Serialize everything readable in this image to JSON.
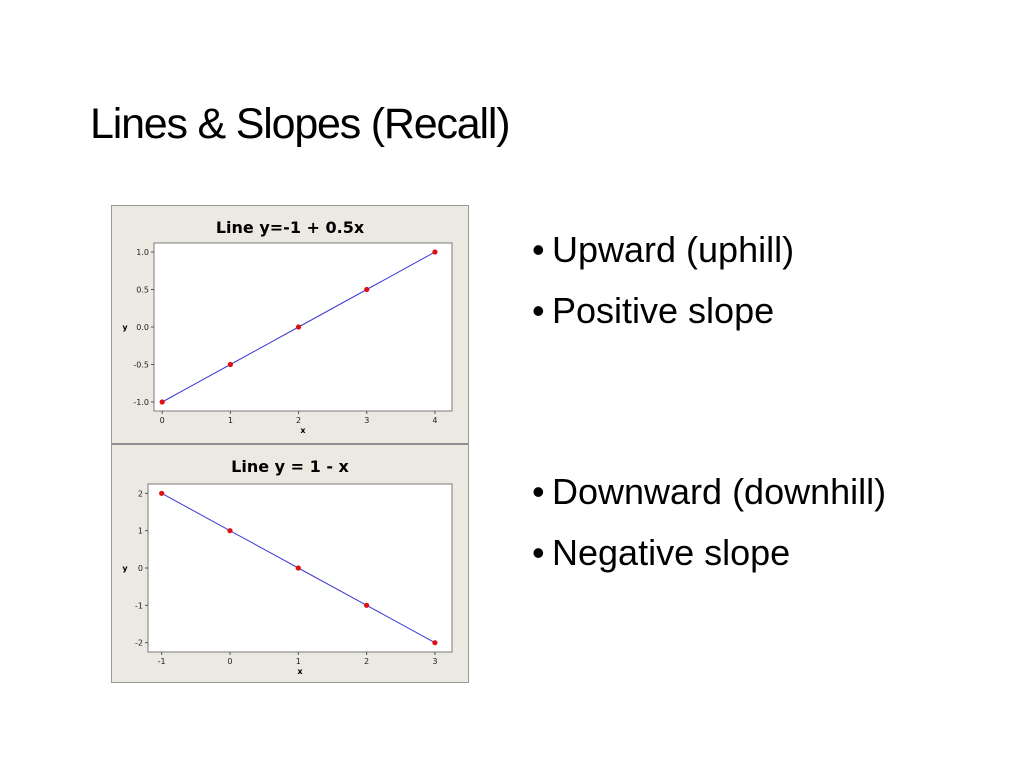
{
  "slide": {
    "title": "Lines & Slopes (Recall)"
  },
  "bullets": {
    "upward": "Upward (uphill)",
    "positive": "Positive slope",
    "downward": "Downward (downhill)",
    "negative": "Negative slope",
    "marker": "•"
  },
  "colors": {
    "line": "#3b3bd6",
    "points": "#dd1111",
    "panel_bg": "#ece9e2",
    "plot_bg": "#ffffff"
  },
  "chart_data": [
    {
      "type": "line",
      "title": "Line y=-1 + 0.5x",
      "xlabel": "x",
      "ylabel": "y",
      "x": [
        0,
        1,
        2,
        3,
        4
      ],
      "series": [
        {
          "values": [
            -1.0,
            -0.5,
            0.0,
            0.5,
            1.0
          ]
        }
      ],
      "xticks": [
        "0",
        "1",
        "2",
        "3",
        "4"
      ],
      "yticks": [
        "1.0",
        "0.5",
        "0.0",
        "-0.5",
        "-1.0"
      ],
      "xlim": [
        -0.12,
        4.25
      ],
      "ylim": [
        -1.12,
        1.12
      ],
      "grid": false,
      "markers": true
    },
    {
      "type": "line",
      "title": "Line y = 1 - x",
      "xlabel": "x",
      "ylabel": "y",
      "x": [
        -1,
        0,
        1,
        2,
        3
      ],
      "series": [
        {
          "values": [
            2,
            1,
            0,
            -1,
            -2
          ]
        }
      ],
      "xticks": [
        "-1",
        "0",
        "1",
        "2",
        "3"
      ],
      "yticks": [
        "2",
        "1",
        "0",
        "-1",
        "-2"
      ],
      "xlim": [
        -1.2,
        3.25
      ],
      "ylim": [
        -2.25,
        2.25
      ],
      "grid": false,
      "markers": true
    }
  ]
}
